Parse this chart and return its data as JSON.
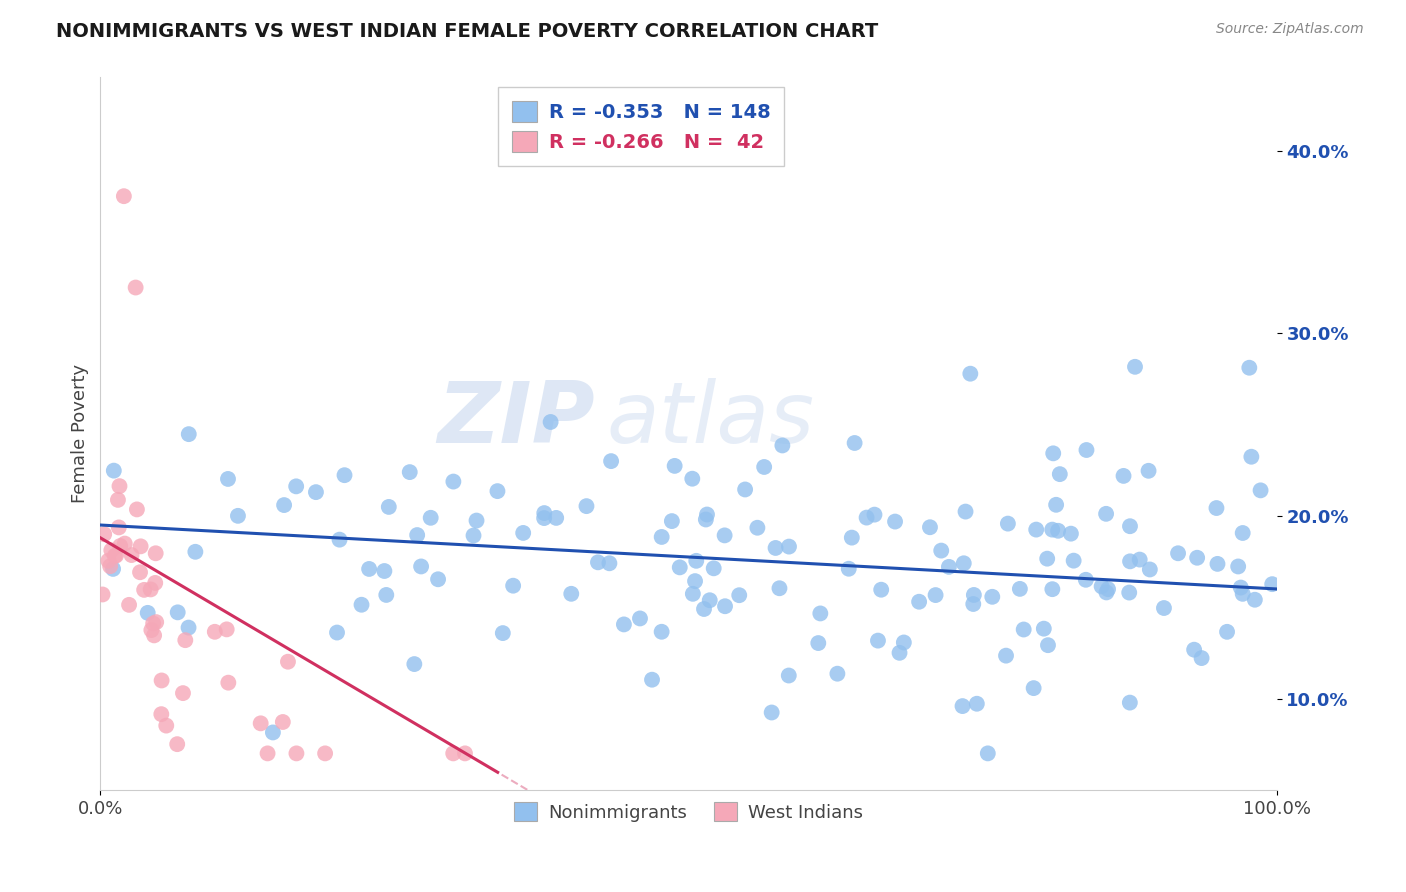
{
  "title": "NONIMMIGRANTS VS WEST INDIAN FEMALE POVERTY CORRELATION CHART",
  "source": "Source: ZipAtlas.com",
  "ylabel": "Female Poverty",
  "xlim": [
    0,
    1
  ],
  "ylim": [
    0.05,
    0.44
  ],
  "yticks": [
    0.1,
    0.2,
    0.3,
    0.4
  ],
  "ytick_labels": [
    "10.0%",
    "20.0%",
    "30.0%",
    "40.0%"
  ],
  "blue_R": -0.353,
  "blue_N": 148,
  "pink_R": -0.266,
  "pink_N": 42,
  "blue_color": "#92C0EE",
  "pink_color": "#F5A8B8",
  "blue_line_color": "#2050B0",
  "pink_line_color": "#D03060",
  "legend_label_blue": "Nonimmigrants",
  "legend_label_pink": "West Indians",
  "background_color": "#ffffff",
  "grid_color": "#cccccc",
  "watermark_zip": "ZIP",
  "watermark_atlas": "atlas",
  "seed": 7
}
